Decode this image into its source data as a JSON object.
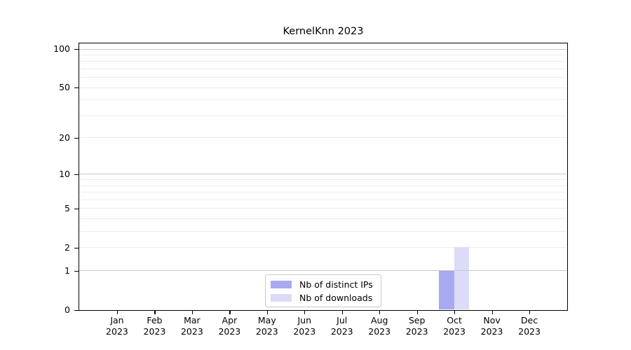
{
  "chart_data": {
    "type": "bar",
    "title": "KernelKnn 2023",
    "categories": [
      "Jan",
      "Feb",
      "Mar",
      "Apr",
      "May",
      "Jun",
      "Jul",
      "Aug",
      "Sep",
      "Oct",
      "Nov",
      "Dec"
    ],
    "year_label": "2023",
    "series": [
      {
        "name": "Nb of distinct IPs",
        "color": "#a9a9f2",
        "values": [
          0,
          0,
          0,
          0,
          0,
          0,
          0,
          0,
          0,
          1,
          0,
          0
        ]
      },
      {
        "name": "Nb of downloads",
        "color": "#dcdcf8",
        "values": [
          0,
          0,
          0,
          0,
          0,
          0,
          0,
          0,
          0,
          2,
          0,
          0
        ]
      }
    ],
    "yscale": "log1p",
    "ylim": [
      0,
      100
    ],
    "yticks": [
      0,
      1,
      2,
      5,
      10,
      20,
      50,
      100
    ],
    "major_gridlines": [
      1,
      10,
      100
    ],
    "minor_gridlines": [
      2,
      3,
      4,
      5,
      6,
      7,
      8,
      9,
      20,
      30,
      40,
      50,
      60,
      70,
      80,
      90
    ],
    "grid": true,
    "legend_position": "inside-bottom-center",
    "xlabel": "",
    "ylabel": ""
  },
  "colors": {
    "bar_distinct_ips": "#a9a9f2",
    "bar_downloads": "#dcdcf8",
    "major_grid": "#c9c9c9",
    "minor_grid": "#ececec",
    "axis": "#000000",
    "legend_border": "#cccccc",
    "background": "#ffffff"
  }
}
